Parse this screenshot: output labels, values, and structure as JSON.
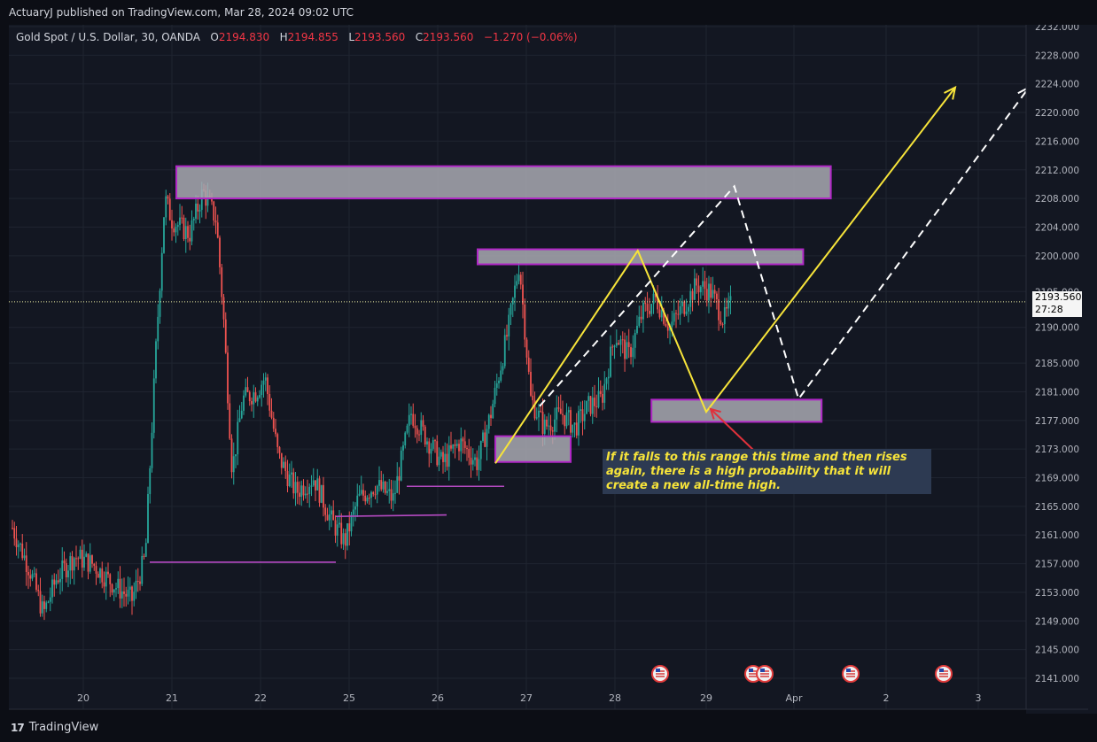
{
  "header": {
    "publisher": "ActuaryJ published on TradingView.com, Mar 28, 2024 09:02 UTC"
  },
  "symbol": {
    "name": "Gold Spot / U.S. Dollar, 30, OANDA",
    "o_label": "O",
    "o_value": "2194.830",
    "h_label": "H",
    "h_value": "2194.855",
    "l_label": "L",
    "l_value": "2193.560",
    "c_label": "C",
    "c_value": "2193.560",
    "change": "−1.270 (−0.06%)"
  },
  "price_label": {
    "price": "2193.560",
    "countdown": "27:28"
  },
  "annotation": {
    "text": "If it falls to this range this time and then rises again, there is a high probability that it will create a new all-time high."
  },
  "footer": {
    "brand": "TradingView",
    "logo_glyph": "17"
  },
  "colors": {
    "background": "#131722",
    "grid": "#1f2430",
    "up": "#26a69a",
    "down": "#ef5350",
    "zone_fill": "#a9a9b1",
    "zone_border": "#b026c6",
    "support_line": "#b54ac2",
    "projection_yellow": "#f7e43a",
    "projection_white": "#ffffff",
    "arrow_red": "#e0313b",
    "current_price_line": "#e8e8a0"
  },
  "chart_data": {
    "type": "candlestick",
    "symbol": "Gold Spot / U.S. Dollar",
    "interval": "30",
    "x_ticks": [
      "20",
      "21",
      "22",
      "25",
      "26",
      "27",
      "28",
      "29",
      "Apr",
      "2",
      "3"
    ],
    "y_ticks": [
      2141.0,
      2145.0,
      2149.0,
      2153.0,
      2157.0,
      2161.0,
      2165.0,
      2169.0,
      2173.0,
      2177.0,
      2181.0,
      2185.0,
      2190.0,
      2195.0,
      2200.0,
      2204.0,
      2208.0,
      2212.0,
      2216.0,
      2220.0,
      2224.0,
      2228.0,
      2232.0
    ],
    "y_tick_labels": [
      "2141.000",
      "2145.000",
      "2149.000",
      "2153.000",
      "2157.000",
      "2161.000",
      "2165.000",
      "2169.000",
      "2173.000",
      "2177.000",
      "2181.000",
      "2185.000",
      "2190.000",
      "2195.000",
      "2200.000",
      "2204.000",
      "2208.000",
      "2212.000",
      "2216.000",
      "2220.000",
      "2224.000",
      "2228.000",
      "2232.000"
    ],
    "ylim": [
      2139.0,
      2233.5
    ],
    "current_price": 2193.56,
    "price_path": [
      {
        "d": 19.2,
        "p": 2162
      },
      {
        "d": 19.4,
        "p": 2156
      },
      {
        "d": 19.55,
        "p": 2150
      },
      {
        "d": 19.7,
        "p": 2155
      },
      {
        "d": 19.9,
        "p": 2158
      },
      {
        "d": 20.1,
        "p": 2157
      },
      {
        "d": 20.35,
        "p": 2154
      },
      {
        "d": 20.55,
        "p": 2152
      },
      {
        "d": 20.7,
        "p": 2158
      },
      {
        "d": 20.82,
        "p": 2187
      },
      {
        "d": 20.92,
        "p": 2208
      },
      {
        "d": 21.0,
        "p": 2205
      },
      {
        "d": 21.2,
        "p": 2203
      },
      {
        "d": 21.35,
        "p": 2209
      },
      {
        "d": 21.5,
        "p": 2205
      },
      {
        "d": 21.58,
        "p": 2192
      },
      {
        "d": 21.68,
        "p": 2170
      },
      {
        "d": 21.8,
        "p": 2180
      },
      {
        "d": 21.95,
        "p": 2181
      },
      {
        "d": 22.05,
        "p": 2183
      },
      {
        "d": 22.2,
        "p": 2172
      },
      {
        "d": 22.4,
        "p": 2167
      },
      {
        "d": 22.6,
        "p": 2169
      },
      {
        "d": 22.8,
        "p": 2163
      },
      {
        "d": 22.95,
        "p": 2160
      },
      {
        "d": 23.1,
        "p": 2166
      },
      {
        "d": 23.3,
        "p": 2168
      },
      {
        "d": 23.5,
        "p": 2166
      },
      {
        "d": 23.7,
        "p": 2178
      },
      {
        "d": 23.9,
        "p": 2174
      },
      {
        "d": 24.05,
        "p": 2171
      },
      {
        "d": 24.25,
        "p": 2174
      },
      {
        "d": 24.45,
        "p": 2171
      },
      {
        "d": 24.6,
        "p": 2178
      },
      {
        "d": 24.8,
        "p": 2190
      },
      {
        "d": 24.92,
        "p": 2199
      },
      {
        "d": 25.05,
        "p": 2180
      },
      {
        "d": 25.2,
        "p": 2176
      },
      {
        "d": 25.4,
        "p": 2178
      },
      {
        "d": 25.55,
        "p": 2176
      },
      {
        "d": 25.7,
        "p": 2179
      },
      {
        "d": 25.85,
        "p": 2180
      },
      {
        "d": 26.0,
        "p": 2189
      },
      {
        "d": 26.15,
        "p": 2186
      },
      {
        "d": 26.3,
        "p": 2192
      },
      {
        "d": 26.45,
        "p": 2194
      },
      {
        "d": 26.6,
        "p": 2190
      },
      {
        "d": 26.75,
        "p": 2193
      },
      {
        "d": 26.9,
        "p": 2196
      },
      {
        "d": 27.05,
        "p": 2195
      },
      {
        "d": 27.2,
        "p": 2191
      },
      {
        "d": 27.3,
        "p": 2193.56
      }
    ],
    "zones": [
      {
        "name": "supply-zone-top",
        "d_start": 21.05,
        "d_end": 28.4,
        "p_low": 2208.0,
        "p_high": 2212.5
      },
      {
        "name": "supply-zone-mid",
        "d_start": 24.45,
        "d_end": 28.1,
        "p_low": 2198.8,
        "p_high": 2200.9
      },
      {
        "name": "demand-zone-upper",
        "d_start": 26.4,
        "d_end": 28.3,
        "p_low": 2176.8,
        "p_high": 2179.9
      },
      {
        "name": "demand-zone-lower",
        "d_start": 24.65,
        "d_end": 25.5,
        "p_low": 2171.2,
        "p_high": 2174.8
      }
    ],
    "support_lines": [
      {
        "d_start": 20.75,
        "d_end": 22.85,
        "p": 2157.2
      },
      {
        "d_start": 22.85,
        "d_end": 24.1,
        "p": 2163.6,
        "p_end": 2163.8
      },
      {
        "d_start": 23.65,
        "d_end": 24.75,
        "p": 2167.8
      }
    ],
    "yellow_projection": [
      {
        "d": 24.65,
        "p": 2171.0
      },
      {
        "d": 26.25,
        "p": 2200.7
      },
      {
        "d": 27.0,
        "p": 2178.2
      },
      {
        "d": 29.75,
        "p": 2223.5
      }
    ],
    "white_projection": [
      {
        "d": 25.15,
        "p": 2179.0
      },
      {
        "d": 27.32,
        "p": 2209.7
      },
      {
        "d": 28.05,
        "p": 2180.0
      },
      {
        "d": 30.55,
        "p": 2223.5
      },
      {
        "d": 30.65,
        "p": 2221.0
      }
    ]
  }
}
